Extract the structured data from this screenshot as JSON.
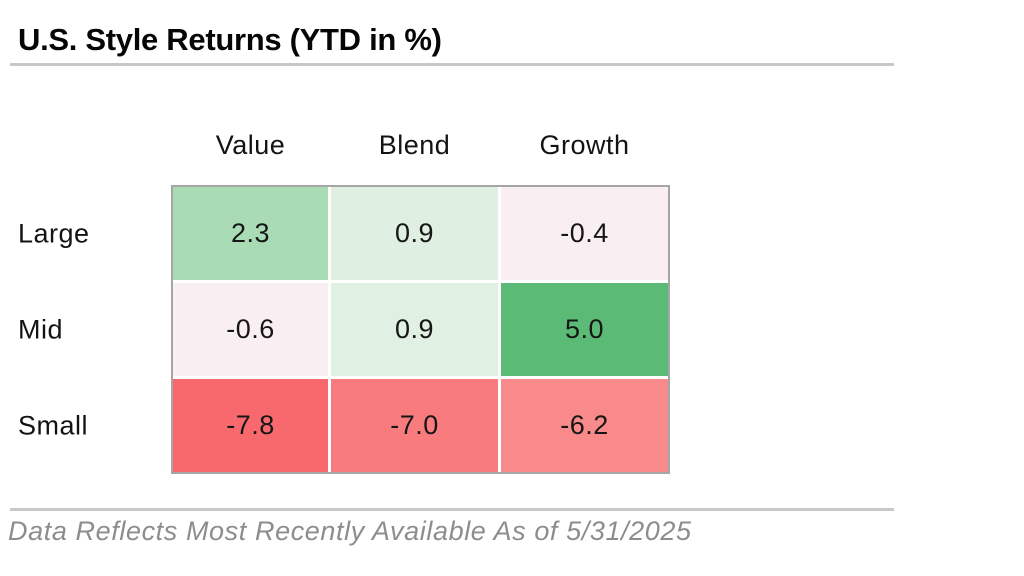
{
  "title": "U.S. Style Returns (YTD in %)",
  "footer": {
    "note": "Data Reflects Most Recently Available As of 5/31/2025"
  },
  "colors": {
    "divider": "#c8c8c8",
    "table_border": "#a6a6a6",
    "footer_text": "#8d8d8d"
  },
  "chart_data": {
    "type": "heatmap",
    "title": "U.S. Style Returns (YTD in %)",
    "unit": "%",
    "columns": [
      "Value",
      "Blend",
      "Growth"
    ],
    "rows": [
      "Large",
      "Mid",
      "Small"
    ],
    "values": [
      [
        2.3,
        0.9,
        -0.4
      ],
      [
        -0.6,
        0.9,
        5.0
      ],
      [
        -7.8,
        -7.0,
        -6.2
      ]
    ],
    "labels": [
      [
        "2.3",
        "0.9",
        "-0.4"
      ],
      [
        "-0.6",
        "0.9",
        "5.0"
      ],
      [
        "-7.8",
        "-7.0",
        "-6.2"
      ]
    ],
    "cell_colors": [
      [
        "#a9dcb5",
        "#dff0e3",
        "#f9eff2"
      ],
      [
        "#f9eff2",
        "#e0f1e4",
        "#5bbb76"
      ],
      [
        "#f8696e",
        "#f87b7e",
        "#f88a8c"
      ]
    ],
    "legend": "none",
    "as_of_date": "5/31/2025"
  }
}
